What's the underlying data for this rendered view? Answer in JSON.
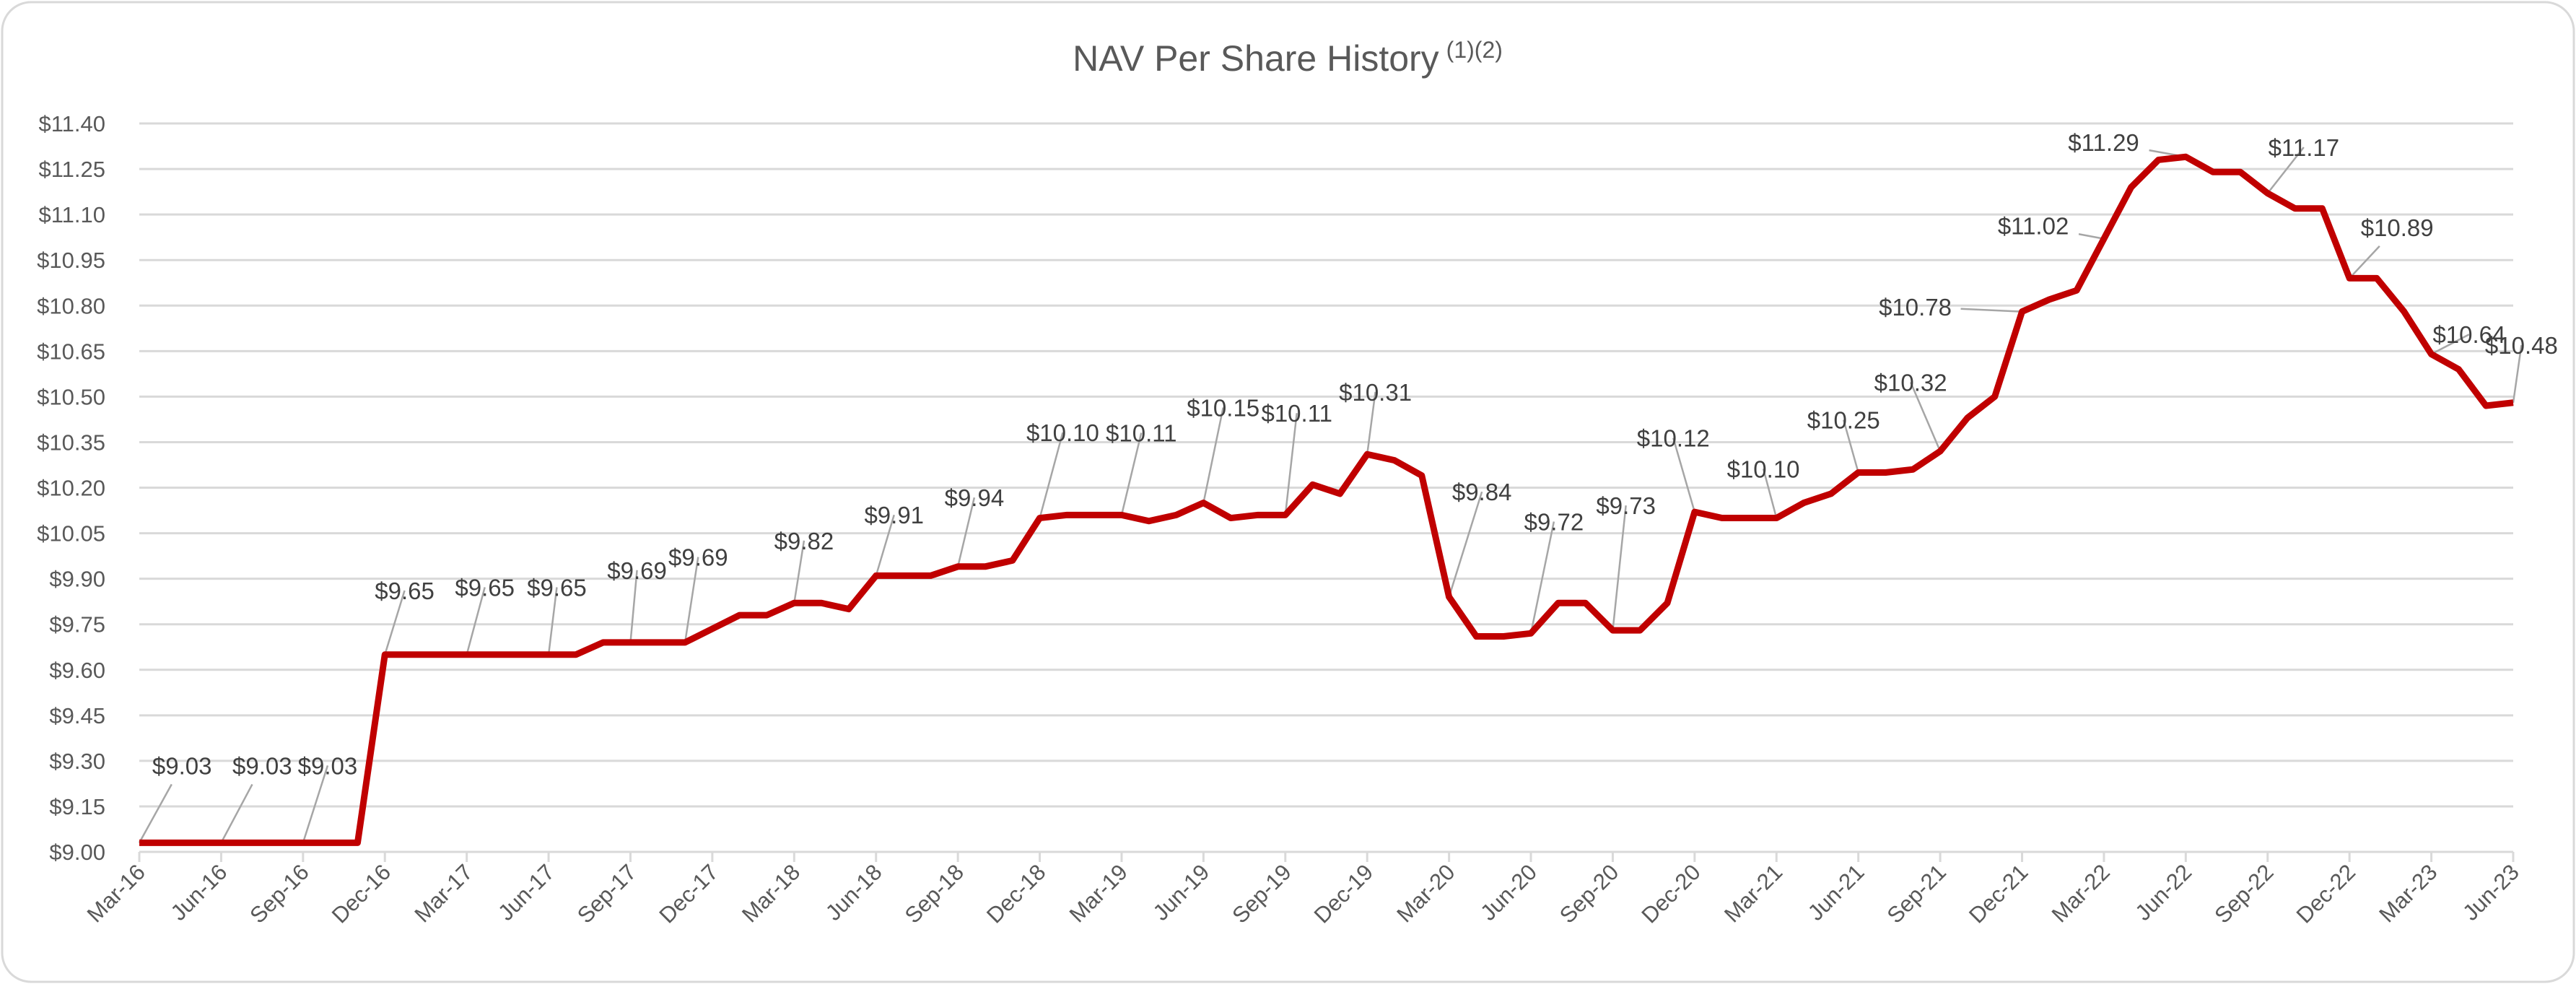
{
  "chart_data": {
    "type": "line",
    "title": "NAV Per Share History",
    "title_superscript": "(1)(2)",
    "xlabel": "",
    "ylabel": "",
    "ylim": [
      9.0,
      11.4
    ],
    "y_ticks": [
      "$9.00",
      "$9.15",
      "$9.30",
      "$9.45",
      "$9.60",
      "$9.75",
      "$9.90",
      "$10.05",
      "$10.20",
      "$10.35",
      "$10.50",
      "$10.65",
      "$10.80",
      "$10.95",
      "$11.10",
      "$11.25",
      "$11.40"
    ],
    "x_ticks": [
      "Mar-16",
      "Jun-16",
      "Sep-16",
      "Dec-16",
      "Mar-17",
      "Jun-17",
      "Sep-17",
      "Dec-17",
      "Mar-18",
      "Jun-18",
      "Sep-18",
      "Dec-18",
      "Mar-19",
      "Jun-19",
      "Sep-19",
      "Dec-19",
      "Mar-20",
      "Jun-20",
      "Sep-20",
      "Dec-20",
      "Mar-21",
      "Jun-21",
      "Sep-21",
      "Dec-21",
      "Mar-22",
      "Jun-22",
      "Sep-22",
      "Dec-22",
      "Mar-23",
      "Jun-23"
    ],
    "grid": true,
    "legend": "none",
    "line_color": "#C00000",
    "x": [
      "Mar-16",
      "Apr-16",
      "May-16",
      "Jun-16",
      "Jul-16",
      "Aug-16",
      "Sep-16",
      "Oct-16",
      "Nov-16",
      "Dec-16",
      "Jan-17",
      "Feb-17",
      "Mar-17",
      "Apr-17",
      "May-17",
      "Jun-17",
      "Jul-17",
      "Aug-17",
      "Sep-17",
      "Oct-17",
      "Nov-17",
      "Dec-17",
      "Jan-18",
      "Feb-18",
      "Mar-18",
      "Apr-18",
      "May-18",
      "Jun-18",
      "Jul-18",
      "Aug-18",
      "Sep-18",
      "Oct-18",
      "Nov-18",
      "Dec-18",
      "Jan-19",
      "Feb-19",
      "Mar-19",
      "Apr-19",
      "May-19",
      "Jun-19",
      "Jul-19",
      "Aug-19",
      "Sep-19",
      "Oct-19",
      "Nov-19",
      "Dec-19",
      "Jan-20",
      "Feb-20",
      "Mar-20",
      "Apr-20",
      "May-20",
      "Jun-20",
      "Jul-20",
      "Aug-20",
      "Sep-20",
      "Oct-20",
      "Nov-20",
      "Dec-20",
      "Jan-21",
      "Feb-21",
      "Mar-21",
      "Apr-21",
      "May-21",
      "Jun-21",
      "Jul-21",
      "Aug-21",
      "Sep-21",
      "Oct-21",
      "Nov-21",
      "Dec-21",
      "Jan-22",
      "Feb-22",
      "Mar-22",
      "Apr-22",
      "May-22",
      "Jun-22",
      "Jul-22",
      "Aug-22",
      "Sep-22",
      "Oct-22",
      "Nov-22",
      "Dec-22",
      "Jan-23",
      "Feb-23",
      "Mar-23",
      "Apr-23",
      "May-23",
      "Jun-23"
    ],
    "values": [
      9.03,
      9.03,
      9.03,
      9.03,
      9.03,
      9.03,
      9.03,
      9.03,
      9.03,
      9.65,
      9.65,
      9.65,
      9.65,
      9.65,
      9.65,
      9.65,
      9.65,
      9.69,
      9.69,
      9.69,
      9.69,
      9.735,
      9.78,
      9.78,
      9.82,
      9.82,
      9.8,
      9.91,
      9.91,
      9.91,
      9.94,
      9.94,
      9.96,
      10.1,
      10.11,
      10.11,
      10.11,
      10.09,
      10.11,
      10.15,
      10.1,
      10.11,
      10.11,
      10.21,
      10.18,
      10.31,
      10.29,
      10.24,
      9.84,
      9.71,
      9.71,
      9.72,
      9.82,
      9.82,
      9.73,
      9.73,
      9.82,
      10.12,
      10.1,
      10.1,
      10.1,
      10.15,
      10.18,
      10.25,
      10.25,
      10.26,
      10.32,
      10.43,
      10.5,
      10.78,
      10.82,
      10.85,
      11.02,
      11.19,
      11.28,
      11.29,
      11.24,
      11.24,
      11.17,
      11.12,
      11.12,
      10.89,
      10.89,
      10.78,
      10.64,
      10.59,
      10.47,
      10.48
    ],
    "data_labels": [
      {
        "x": "Mar-16",
        "text": "$9.03"
      },
      {
        "x": "Jun-16",
        "text": "$9.03"
      },
      {
        "x": "Sep-16",
        "text": "$9.03"
      },
      {
        "x": "Dec-16",
        "text": "$9.65"
      },
      {
        "x": "Mar-17",
        "text": "$9.65"
      },
      {
        "x": "Jun-17",
        "text": "$9.65"
      },
      {
        "x": "Sep-17",
        "text": "$9.69"
      },
      {
        "x": "Nov-17",
        "text": "$9.69"
      },
      {
        "x": "Mar-18",
        "text": "$9.82"
      },
      {
        "x": "Jun-18",
        "text": "$9.91"
      },
      {
        "x": "Sep-18",
        "text": "$9.94"
      },
      {
        "x": "Dec-18",
        "text": "$10.10"
      },
      {
        "x": "Mar-19",
        "text": "$10.11"
      },
      {
        "x": "Jun-19",
        "text": "$10.15"
      },
      {
        "x": "Sep-19",
        "text": "$10.11"
      },
      {
        "x": "Dec-19",
        "text": "$10.31"
      },
      {
        "x": "Mar-20",
        "text": "$9.84"
      },
      {
        "x": "Jun-20",
        "text": "$9.72"
      },
      {
        "x": "Sep-20",
        "text": "$9.73"
      },
      {
        "x": "Dec-20",
        "text": "$10.12"
      },
      {
        "x": "Mar-21",
        "text": "$10.10"
      },
      {
        "x": "Jun-21",
        "text": "$10.25"
      },
      {
        "x": "Sep-21",
        "text": "$10.32"
      },
      {
        "x": "Dec-21",
        "text": "$10.78"
      },
      {
        "x": "Mar-22",
        "text": "$11.02"
      },
      {
        "x": "Jun-22",
        "text": "$11.29"
      },
      {
        "x": "Sep-22",
        "text": "$11.17"
      },
      {
        "x": "Dec-22",
        "text": "$10.89"
      },
      {
        "x": "Mar-23",
        "text": "$10.64"
      },
      {
        "x": "Jun-23",
        "text": "$10.48"
      }
    ]
  }
}
